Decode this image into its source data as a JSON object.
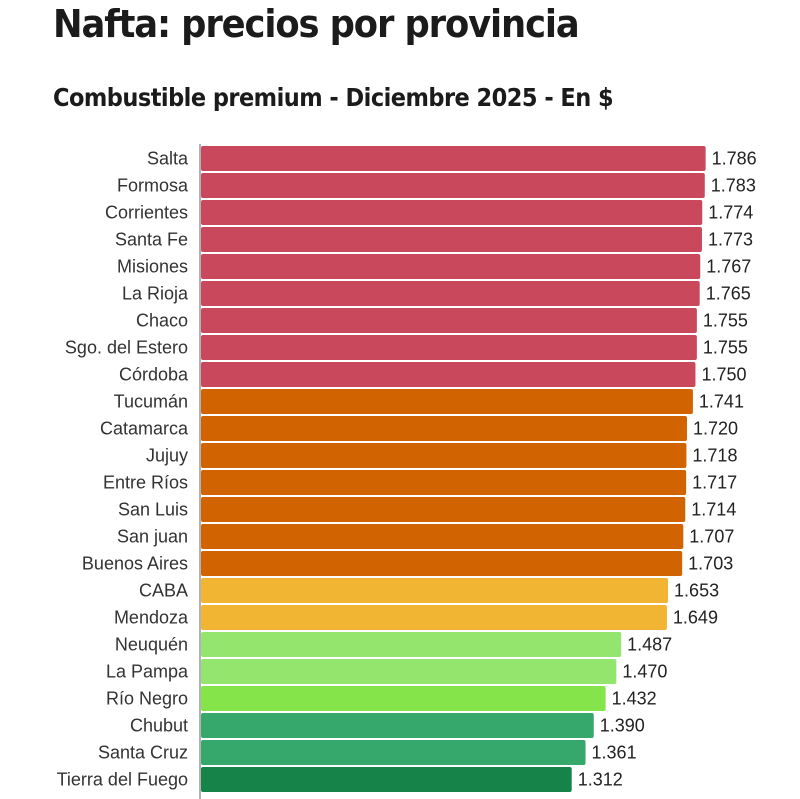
{
  "header": {
    "title": "Nafta: precios por provincia",
    "subtitle": "Combustible premium - Diciembre 2025 - En $"
  },
  "chart_data": {
    "type": "bar",
    "orientation": "horizontal",
    "title": "Nafta: precios por provincia",
    "subtitle": "Combustible premium - Diciembre 2025 - En $",
    "xlabel": "",
    "ylabel": "",
    "xlim": [
      0,
      2120
    ],
    "grid": false,
    "categories": [
      "Salta",
      "Formosa",
      "Corrientes",
      "Santa Fe",
      "Misiones",
      "La Rioja",
      "Chaco",
      "Sgo. del Estero",
      "Córdoba",
      "Tucumán",
      "Catamarca",
      "Jujuy",
      "Entre Ríos",
      "San Luis",
      "San juan",
      "Buenos Aires",
      "CABA",
      "Mendoza",
      "Neuquén",
      "La Pampa",
      "Río Negro",
      "Chubut",
      "Santa Cruz",
      "Tierra del Fuego"
    ],
    "values": [
      1786,
      1783,
      1774,
      1773,
      1767,
      1765,
      1755,
      1755,
      1750,
      1741,
      1720,
      1718,
      1717,
      1714,
      1707,
      1703,
      1653,
      1649,
      1487,
      1470,
      1432,
      1390,
      1361,
      1312
    ],
    "value_labels": [
      "1.786",
      "1.783",
      "1.774",
      "1.773",
      "1.767",
      "1.765",
      "1.755",
      "1.755",
      "1.750",
      "1.741",
      "1.720",
      "1.718",
      "1.717",
      "1.714",
      "1.707",
      "1.703",
      "1.653",
      "1.649",
      "1.487",
      "1.470",
      "1.432",
      "1.390",
      "1.361",
      "1.312"
    ],
    "colors": [
      "#c9485b",
      "#c9485b",
      "#c9485b",
      "#c9485b",
      "#c9485b",
      "#c9485b",
      "#c9485b",
      "#c9485b",
      "#c9485b",
      "#d26400",
      "#d26400",
      "#d26400",
      "#d26400",
      "#d26400",
      "#d26400",
      "#d26400",
      "#f2b433",
      "#f2b433",
      "#94e56e",
      "#94e56e",
      "#84e44a",
      "#37a86c",
      "#37a86c",
      "#168448"
    ]
  }
}
